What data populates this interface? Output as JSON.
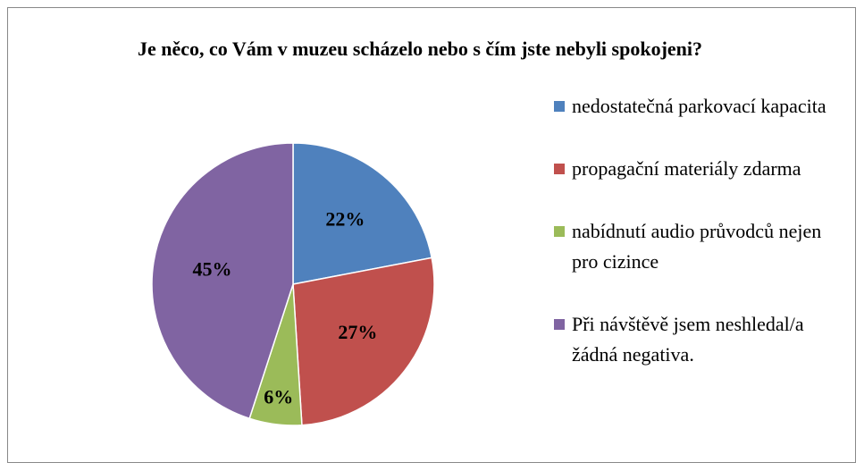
{
  "chart_data": {
    "type": "pie",
    "title": "Je něco, co Vám v muzeu scházelo nebo s čím jste nebyli spokojeni?",
    "categories": [
      "nedostatečná parkovací kapacita",
      "propagační materiály zdarma",
      "nabídnutí audio průvodců nejen pro cizince",
      "Při návštěvě jsem neshledal/a žádná negativa."
    ],
    "values": [
      22,
      27,
      6,
      45
    ],
    "value_labels": [
      "22%",
      "27%",
      "6%",
      "45%"
    ],
    "colors": [
      "#4f81bd",
      "#c0504d",
      "#9bbb59",
      "#8064a2"
    ],
    "legend": "right"
  }
}
